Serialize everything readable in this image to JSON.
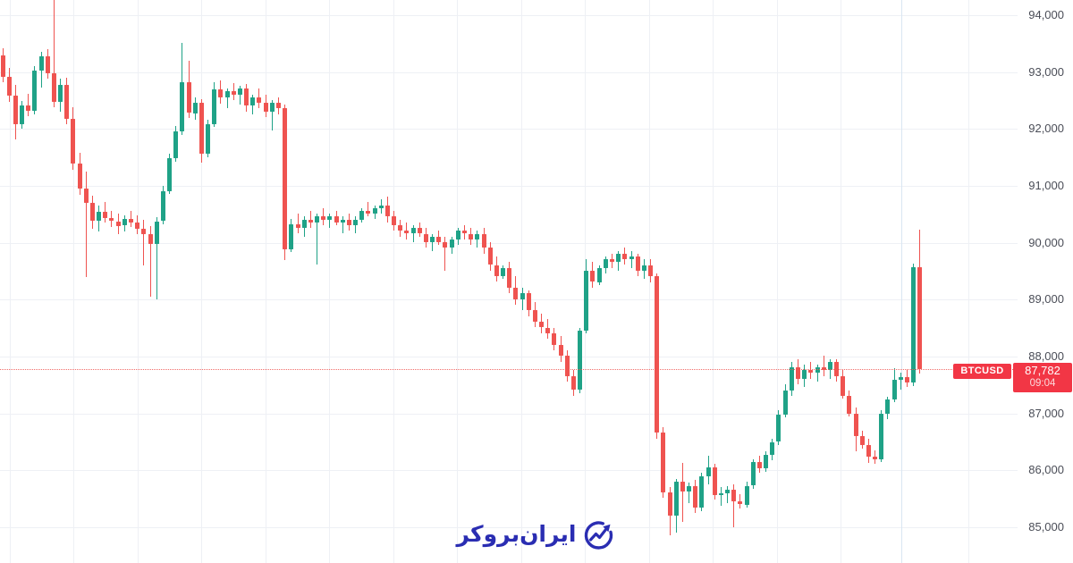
{
  "page": {
    "background": "#ffffff"
  },
  "chart_data": {
    "type": "candlestick",
    "symbol": "BTCUSD",
    "last_price": 87782,
    "last_price_label": "87,782",
    "countdown": "09:04",
    "direction": "down",
    "colors": {
      "up": "#1fa287",
      "down": "#ef5350",
      "price_label_bg": "#f23645",
      "grid": "#eef0f5",
      "axis_text": "#4a4d57",
      "session_line": "#d9e6f2"
    },
    "y_axis": {
      "side": "right",
      "ticks": [
        {
          "label": "94,000",
          "value": 94000
        },
        {
          "label": "93,000",
          "value": 93000
        },
        {
          "label": "92,000",
          "value": 92000
        },
        {
          "label": "91,000",
          "value": 91000
        },
        {
          "label": "90,000",
          "value": 90000
        },
        {
          "label": "89,000",
          "value": 89000
        },
        {
          "label": "88,000",
          "value": 88000
        },
        {
          "label": "87,000",
          "value": 87000
        },
        {
          "label": "86,000",
          "value": 86000
        },
        {
          "label": "85,000",
          "value": 85000
        }
      ]
    },
    "price_line": {
      "value": 87782,
      "style": "dotted",
      "color": "#ef5350"
    },
    "candles": [
      [
        93300,
        93420,
        92820,
        92920
      ],
      [
        92920,
        93080,
        92480,
        92580
      ],
      [
        92580,
        92780,
        91820,
        92080
      ],
      [
        92080,
        92500,
        92000,
        92420
      ],
      [
        92420,
        92620,
        92230,
        92320
      ],
      [
        92320,
        93100,
        92260,
        93020
      ],
      [
        93020,
        93360,
        92720,
        93280
      ],
      [
        93280,
        93400,
        92880,
        92980
      ],
      [
        92980,
        94550,
        92380,
        92480
      ],
      [
        92480,
        92880,
        92300,
        92780
      ],
      [
        92780,
        92900,
        92080,
        92180
      ],
      [
        92180,
        92380,
        91280,
        91400
      ],
      [
        91400,
        91580,
        90850,
        90950
      ],
      [
        90950,
        91250,
        89400,
        90700
      ],
      [
        90700,
        90820,
        90250,
        90380
      ],
      [
        90380,
        90650,
        90200,
        90550
      ],
      [
        90550,
        90720,
        90350,
        90430
      ],
      [
        90430,
        90560,
        90280,
        90380
      ],
      [
        90380,
        90520,
        90150,
        90300
      ],
      [
        90300,
        90480,
        90200,
        90420
      ],
      [
        90420,
        90560,
        90280,
        90350
      ],
      [
        90350,
        90480,
        90150,
        90250
      ],
      [
        90250,
        90400,
        89600,
        90150
      ],
      [
        90150,
        90300,
        89050,
        89980
      ],
      [
        89980,
        90450,
        89000,
        90380
      ],
      [
        90380,
        91000,
        90320,
        90900
      ],
      [
        90900,
        91560,
        90850,
        91480
      ],
      [
        91480,
        92060,
        91430,
        91960
      ],
      [
        91960,
        93510,
        91900,
        92820
      ],
      [
        92820,
        93200,
        92200,
        92280
      ],
      [
        92280,
        92560,
        92160,
        92460
      ],
      [
        92460,
        92530,
        91400,
        91560
      ],
      [
        91560,
        92160,
        91500,
        92080
      ],
      [
        92080,
        92830,
        92030,
        92700
      ],
      [
        92700,
        92860,
        92450,
        92560
      ],
      [
        92560,
        92720,
        92360,
        92660
      ],
      [
        92660,
        92810,
        92510,
        92600
      ],
      [
        92600,
        92760,
        92420,
        92710
      ],
      [
        92710,
        92790,
        92310,
        92410
      ],
      [
        92410,
        92610,
        92260,
        92560
      ],
      [
        92560,
        92710,
        92360,
        92460
      ],
      [
        92460,
        92610,
        92210,
        92310
      ],
      [
        92310,
        92510,
        91980,
        92460
      ],
      [
        92460,
        92560,
        92260,
        92360
      ],
      [
        92360,
        92430,
        89700,
        89880
      ],
      [
        89880,
        90420,
        89830,
        90320
      ],
      [
        90320,
        90520,
        90170,
        90260
      ],
      [
        90260,
        90460,
        90110,
        90410
      ],
      [
        90410,
        90560,
        90260,
        90360
      ],
      [
        90360,
        90510,
        89620,
        90460
      ],
      [
        90460,
        90610,
        90310,
        90410
      ],
      [
        90410,
        90510,
        90260,
        90460
      ],
      [
        90460,
        90560,
        90310,
        90360
      ],
      [
        90360,
        90460,
        90160,
        90410
      ],
      [
        90410,
        90510,
        90210,
        90310
      ],
      [
        90310,
        90460,
        90160,
        90410
      ],
      [
        90410,
        90610,
        90360,
        90560
      ],
      [
        90560,
        90710,
        90460,
        90510
      ],
      [
        90510,
        90660,
        90410,
        90610
      ],
      [
        90610,
        90760,
        90510,
        90660
      ],
      [
        90660,
        90810,
        90360,
        90460
      ],
      [
        90460,
        90560,
        90210,
        90310
      ],
      [
        90310,
        90410,
        90110,
        90210
      ],
      [
        90210,
        90360,
        90060,
        90160
      ],
      [
        90160,
        90310,
        90010,
        90260
      ],
      [
        90260,
        90360,
        90110,
        90160
      ],
      [
        90160,
        90260,
        89910,
        90010
      ],
      [
        90010,
        90160,
        89860,
        90110
      ],
      [
        90110,
        90210,
        89960,
        90010
      ],
      [
        90010,
        90110,
        89510,
        89910
      ],
      [
        89910,
        90110,
        89810,
        90060
      ],
      [
        90060,
        90260,
        89960,
        90210
      ],
      [
        90210,
        90310,
        90060,
        90160
      ],
      [
        90160,
        90260,
        89960,
        90060
      ],
      [
        90060,
        90210,
        89910,
        90160
      ],
      [
        90160,
        90260,
        89810,
        89910
      ],
      [
        89910,
        90010,
        89510,
        89610
      ],
      [
        89610,
        89760,
        89310,
        89410
      ],
      [
        89410,
        89610,
        89360,
        89560
      ],
      [
        89560,
        89660,
        89110,
        89210
      ],
      [
        89210,
        89410,
        88910,
        89010
      ],
      [
        89010,
        89210,
        88810,
        89110
      ],
      [
        89110,
        89160,
        88710,
        88810
      ],
      [
        88810,
        88960,
        88510,
        88610
      ],
      [
        88610,
        88760,
        88410,
        88510
      ],
      [
        88510,
        88660,
        88310,
        88410
      ],
      [
        88410,
        88510,
        88110,
        88210
      ],
      [
        88210,
        88360,
        87910,
        88010
      ],
      [
        88010,
        88110,
        87560,
        87660
      ],
      [
        87660,
        87760,
        87310,
        87410
      ],
      [
        87410,
        88510,
        87360,
        88460
      ],
      [
        88460,
        89710,
        88410,
        89510
      ],
      [
        89510,
        89660,
        89210,
        89310
      ],
      [
        89310,
        89610,
        89260,
        89560
      ],
      [
        89560,
        89760,
        89460,
        89710
      ],
      [
        89710,
        89810,
        89560,
        89660
      ],
      [
        89660,
        89860,
        89510,
        89810
      ],
      [
        89810,
        89910,
        89610,
        89710
      ],
      [
        89710,
        89860,
        89560,
        89760
      ],
      [
        89760,
        89810,
        89410,
        89510
      ],
      [
        89510,
        89710,
        89360,
        89610
      ],
      [
        89610,
        89710,
        89310,
        89410
      ],
      [
        89410,
        89460,
        86560,
        86660
      ],
      [
        86660,
        86760,
        85510,
        85610
      ],
      [
        85610,
        85710,
        84850,
        85210
      ],
      [
        85210,
        85850,
        84900,
        85800
      ],
      [
        85800,
        86130,
        85100,
        85630
      ],
      [
        85630,
        85780,
        85430,
        85730
      ],
      [
        85730,
        85830,
        85250,
        85350
      ],
      [
        85350,
        85960,
        85280,
        85900
      ],
      [
        85900,
        86250,
        85750,
        86050
      ],
      [
        86050,
        86120,
        85480,
        85560
      ],
      [
        85560,
        85700,
        85380,
        85600
      ],
      [
        85600,
        85720,
        85420,
        85660
      ],
      [
        85660,
        85750,
        85000,
        85450
      ],
      [
        85450,
        85580,
        85330,
        85400
      ],
      [
        85400,
        85800,
        85350,
        85730
      ],
      [
        85730,
        86200,
        85680,
        86150
      ],
      [
        86150,
        86250,
        85950,
        86030
      ],
      [
        86030,
        86330,
        85980,
        86280
      ],
      [
        86280,
        86560,
        86180,
        86500
      ],
      [
        86500,
        87060,
        86450,
        86980
      ],
      [
        86980,
        87510,
        86930,
        87410
      ],
      [
        87410,
        87910,
        87310,
        87810
      ],
      [
        87810,
        87960,
        87510,
        87610
      ],
      [
        87610,
        87860,
        87460,
        87760
      ],
      [
        87760,
        87910,
        87610,
        87710
      ],
      [
        87710,
        87860,
        87560,
        87810
      ],
      [
        87810,
        88010,
        87660,
        87760
      ],
      [
        87760,
        87960,
        87610,
        87910
      ],
      [
        87910,
        87960,
        87560,
        87660
      ],
      [
        87660,
        87760,
        87260,
        87310
      ],
      [
        87310,
        87410,
        86940,
        87000
      ],
      [
        87000,
        87100,
        86330,
        86600
      ],
      [
        86600,
        86700,
        86380,
        86450
      ],
      [
        86450,
        86550,
        86130,
        86240
      ],
      [
        86240,
        86350,
        86120,
        86200
      ],
      [
        86200,
        87050,
        86150,
        86990
      ],
      [
        86990,
        87300,
        86900,
        87250
      ],
      [
        87250,
        87800,
        87200,
        87590
      ],
      [
        87590,
        87720,
        87420,
        87640
      ],
      [
        87640,
        87780,
        87460,
        87540
      ],
      [
        87540,
        89640,
        87480,
        89570
      ],
      [
        89570,
        90230,
        87700,
        87782
      ]
    ]
  },
  "watermark": {
    "text": "ایران‌بروکر",
    "color": "#2a2db2",
    "logo": "trend-arrow-circle-icon"
  },
  "corner_widget": {
    "icon": "clock-icon",
    "color": "#ae3cba"
  }
}
